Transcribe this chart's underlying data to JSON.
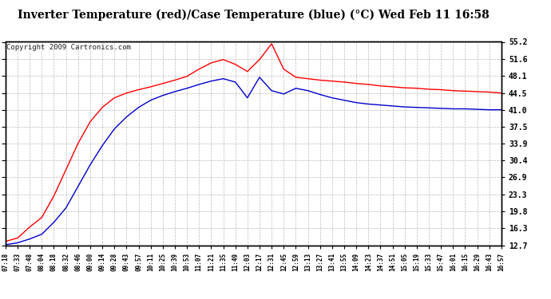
{
  "title": "Inverter Temperature (red)/Case Temperature (blue) (°C) Wed Feb 11 16:58",
  "copyright": "Copyright 2009 Cartronics.com",
  "background_color": "#ffffff",
  "plot_bg_color": "#ffffff",
  "grid_color": "#bbbbbb",
  "line_red_color": "#ff0000",
  "line_blue_color": "#0000cc",
  "ylim": [
    12.7,
    55.2
  ],
  "yticks": [
    12.7,
    16.3,
    19.8,
    23.3,
    26.9,
    30.4,
    33.9,
    37.5,
    41.0,
    44.5,
    48.1,
    51.6,
    55.2
  ],
  "x_labels": [
    "07:18",
    "07:33",
    "07:48",
    "08:04",
    "08:18",
    "08:32",
    "08:46",
    "09:00",
    "09:14",
    "09:28",
    "09:43",
    "09:57",
    "10:11",
    "10:25",
    "10:39",
    "10:53",
    "11:07",
    "11:21",
    "11:35",
    "11:49",
    "12:03",
    "12:17",
    "12:31",
    "12:45",
    "12:59",
    "13:13",
    "13:27",
    "13:41",
    "13:55",
    "14:09",
    "14:23",
    "14:37",
    "14:51",
    "15:05",
    "15:19",
    "15:33",
    "15:47",
    "16:01",
    "16:15",
    "16:29",
    "16:43",
    "16:57"
  ],
  "red_values": [
    13.5,
    14.2,
    16.5,
    18.5,
    23.0,
    28.5,
    34.0,
    38.5,
    41.5,
    43.5,
    44.5,
    45.2,
    45.8,
    46.5,
    47.2,
    48.0,
    49.5,
    50.8,
    51.5,
    50.5,
    49.0,
    51.5,
    54.8,
    49.5,
    47.8,
    47.5,
    47.2,
    47.0,
    46.8,
    46.5,
    46.3,
    46.0,
    45.8,
    45.6,
    45.5,
    45.3,
    45.2,
    45.0,
    44.9,
    44.8,
    44.7,
    44.5
  ],
  "blue_values": [
    12.8,
    13.2,
    14.0,
    15.0,
    17.5,
    20.5,
    25.0,
    29.5,
    33.5,
    37.0,
    39.5,
    41.5,
    43.0,
    44.0,
    44.8,
    45.5,
    46.3,
    47.0,
    47.5,
    46.8,
    43.5,
    47.8,
    45.0,
    44.3,
    45.5,
    45.0,
    44.2,
    43.5,
    43.0,
    42.5,
    42.2,
    42.0,
    41.8,
    41.6,
    41.5,
    41.4,
    41.3,
    41.2,
    41.2,
    41.1,
    41.0,
    41.0
  ],
  "title_fontsize": 10,
  "copyright_fontsize": 6.5,
  "tick_fontsize": 7,
  "xtick_fontsize": 5.5
}
